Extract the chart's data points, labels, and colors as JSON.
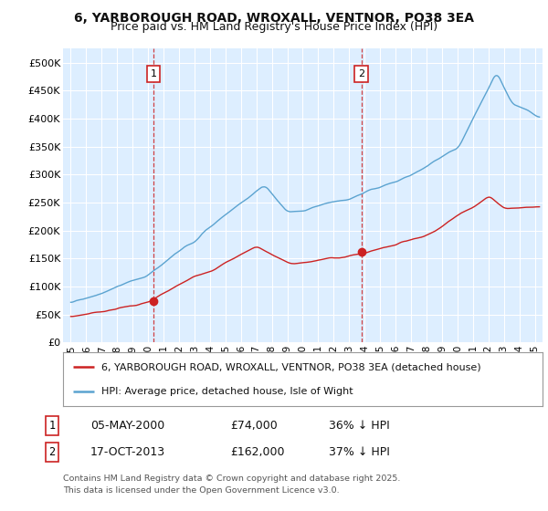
{
  "title": "6, YARBOROUGH ROAD, WROXALL, VENTNOR, PO38 3EA",
  "subtitle": "Price paid vs. HM Land Registry's House Price Index (HPI)",
  "ylabel_ticks": [
    "£0",
    "£50K",
    "£100K",
    "£150K",
    "£200K",
    "£250K",
    "£300K",
    "£350K",
    "£400K",
    "£450K",
    "£500K"
  ],
  "ytick_values": [
    0,
    50000,
    100000,
    150000,
    200000,
    250000,
    300000,
    350000,
    400000,
    450000,
    500000
  ],
  "ylim": [
    0,
    525000
  ],
  "xlim_start": 1994.5,
  "xlim_end": 2025.5,
  "hpi_color": "#5ba3d0",
  "price_color": "#cc2222",
  "vline_color": "#cc2222",
  "bg_color": "#ddeeff",
  "grid_color": "#ffffff",
  "sale1_x": 2000.35,
  "sale1_y": 74000,
  "sale2_x": 2013.8,
  "sale2_y": 162000,
  "legend_line1": "6, YARBOROUGH ROAD, WROXALL, VENTNOR, PO38 3EA (detached house)",
  "legend_line2": "HPI: Average price, detached house, Isle of Wight",
  "table_row1": [
    "1",
    "05-MAY-2000",
    "£74,000",
    "36% ↓ HPI"
  ],
  "table_row2": [
    "2",
    "17-OCT-2013",
    "£162,000",
    "37% ↓ HPI"
  ],
  "footnote": "Contains HM Land Registry data © Crown copyright and database right 2025.\nThis data is licensed under the Open Government Licence v3.0."
}
